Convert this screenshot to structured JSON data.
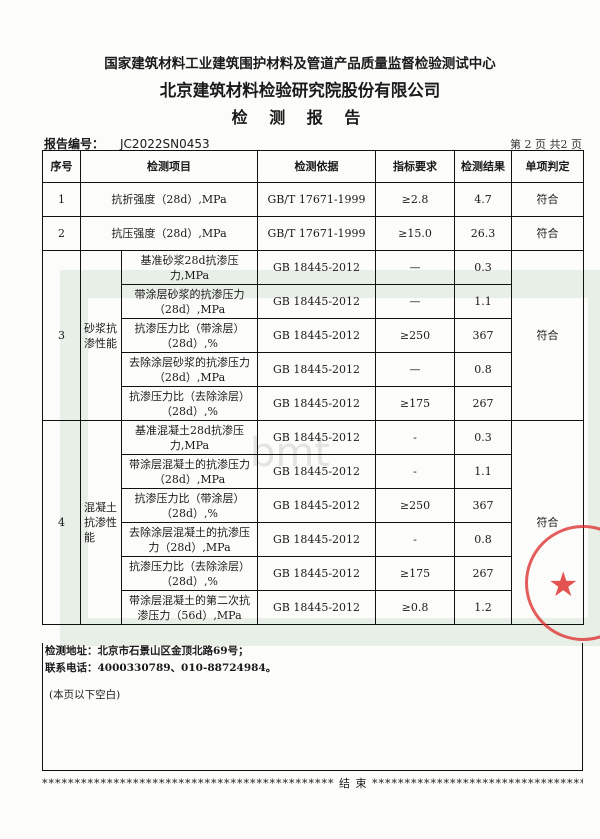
{
  "header": {
    "org": "国家建筑材料工业建筑围护材料及管道产品质量监督检验测试中心",
    "company": "北京建筑材料检验研究院股份有限公司",
    "title": "检 测 报 告"
  },
  "report": {
    "number_label": "报告编号：",
    "number": "JC2022SN0453",
    "page": "第 2 页 共2 页"
  },
  "table": {
    "headers": [
      "序号",
      "检测项目",
      "检测依据",
      "指标要求",
      "检测结果",
      "单项判定"
    ],
    "rows": [
      {
        "no": "1",
        "item": "抗折强度（28d）,MPa",
        "basis": "GB/T 17671-1999",
        "req": "≥2.8",
        "result": "4.7",
        "verdict": "符合"
      },
      {
        "no": "2",
        "item": "抗压强度（28d）,MPa",
        "basis": "GB/T 17671-1999",
        "req": "≥15.0",
        "result": "26.3",
        "verdict": "符合"
      }
    ],
    "group3": {
      "no": "3",
      "name": "砂浆抗渗性能",
      "verdict": "符合",
      "subs": [
        {
          "item": "基准砂浆28d抗渗压力,MPa",
          "basis": "GB 18445-2012",
          "req": "—",
          "result": "0.3"
        },
        {
          "item": "带涂层砂浆的抗渗压力（28d）,MPa",
          "basis": "GB 18445-2012",
          "req": "—",
          "result": "1.1"
        },
        {
          "item": "抗渗压力比（带涂层）（28d）,%",
          "basis": "GB 18445-2012",
          "req": "≥250",
          "result": "367"
        },
        {
          "item": "去除涂层砂浆的抗渗压力（28d）,MPa",
          "basis": "GB 18445-2012",
          "req": "—",
          "result": "0.8"
        },
        {
          "item": "抗渗压力比（去除涂层）（28d）,%",
          "basis": "GB 18445-2012",
          "req": "≥175",
          "result": "267"
        }
      ]
    },
    "group4": {
      "no": "4",
      "name": "混凝土抗渗性能",
      "verdict": "符合",
      "subs": [
        {
          "item": "基准混凝土28d抗渗压力,MPa",
          "basis": "GB 18445-2012",
          "req": "-",
          "result": "0.3"
        },
        {
          "item": "带涂层混凝土的抗渗压力（28d）,MPa",
          "basis": "GB 18445-2012",
          "req": "-",
          "result": "1.1"
        },
        {
          "item": "抗渗压力比（带涂层）（28d）,%",
          "basis": "GB 18445-2012",
          "req": "≥250",
          "result": "367"
        },
        {
          "item": "去除涂层混凝土的抗渗压力（28d）,MPa",
          "basis": "GB 18445-2012",
          "req": "-",
          "result": "0.8"
        },
        {
          "item": "抗渗压力比（去除涂层）（28d）,%",
          "basis": "GB 18445-2012",
          "req": "≥175",
          "result": "267"
        },
        {
          "item": "带涂层混凝土的第二次抗渗压力（56d）,MPa",
          "basis": "GB 18445-2012",
          "req": "≥0.8",
          "result": "1.2"
        }
      ]
    }
  },
  "footer": {
    "address": "检测地址：北京市石景山区金顶北路69号；",
    "phone": "联系电话：4000330789、010-88724984。",
    "blank": "(本页以下空白)",
    "end": "结    束"
  },
  "watermark": "bmt",
  "colors": {
    "stamp": "#dc2828",
    "watermark": "#78aa82"
  }
}
